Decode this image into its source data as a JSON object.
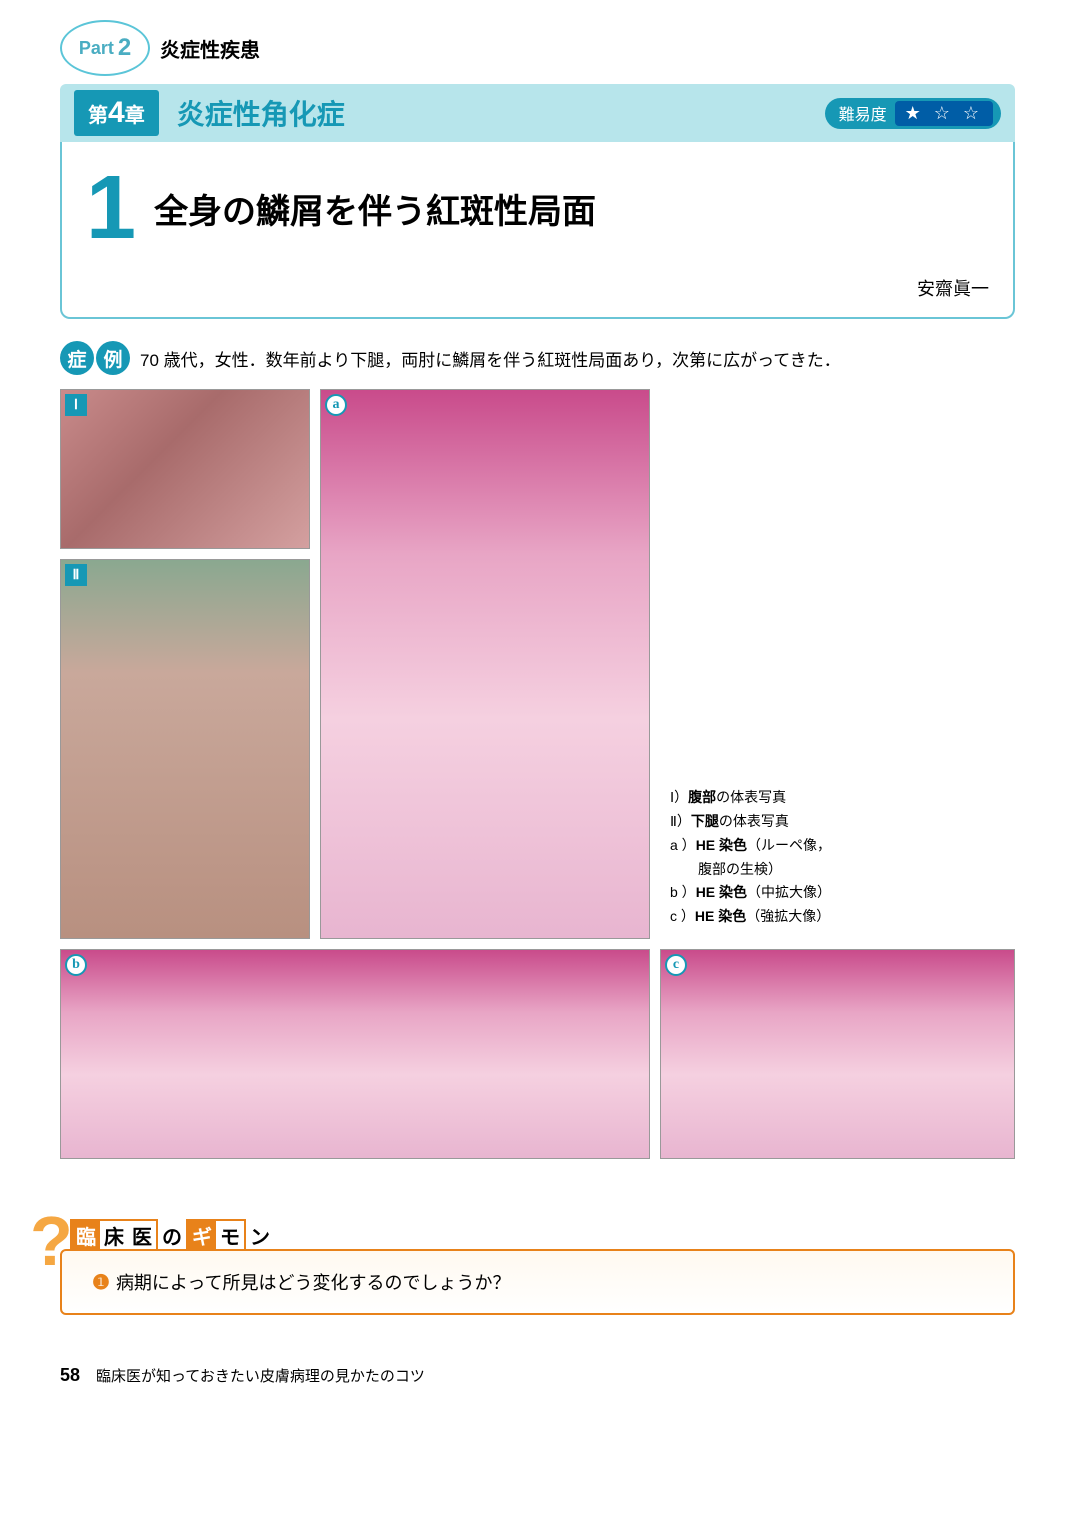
{
  "part": {
    "label": "Part",
    "number": "2",
    "title": "炎症性疾患"
  },
  "chapter": {
    "prefix": "第",
    "number": "4",
    "suffix": "章",
    "title": "炎症性角化症",
    "difficulty_label": "難易度",
    "stars": "★ ☆ ☆"
  },
  "section": {
    "number": "1",
    "title": "全身の鱗屑を伴う紅斑性局面",
    "author": "安齋眞一"
  },
  "case": {
    "badge1": "症",
    "badge2": "例",
    "text": "70 歳代，女性．数年前より下腿，両肘に鱗屑を伴う紅斑性局面あり，次第に広がってきた．"
  },
  "figures": {
    "label_I": "Ⅰ",
    "label_II": "Ⅱ",
    "label_a": "a",
    "label_b": "b",
    "label_c": "c",
    "legend": [
      {
        "key": "Ⅰ）",
        "bold": "腹部",
        "rest": "の体表写真"
      },
      {
        "key": "Ⅱ）",
        "bold": "下腿",
        "rest": "の体表写真"
      },
      {
        "key": "a ）",
        "bold": "HE 染色",
        "rest": "（ルーペ像，腹部の生検）"
      },
      {
        "key": "b ）",
        "bold": "HE 染色",
        "rest": "（中拡大像）"
      },
      {
        "key": "c ）",
        "bold": "HE 染色",
        "rest": "（強拡大像）"
      }
    ]
  },
  "question": {
    "header_chars": [
      "臨",
      "床",
      "医",
      "の",
      "ギ",
      "モ",
      "ン"
    ],
    "bullet": "❶",
    "text": "病期によって所見はどう変化するのでしょうか？"
  },
  "footer": {
    "page": "58",
    "book_title": "臨床医が知っておきたい皮膚病理の見かたのコツ"
  }
}
